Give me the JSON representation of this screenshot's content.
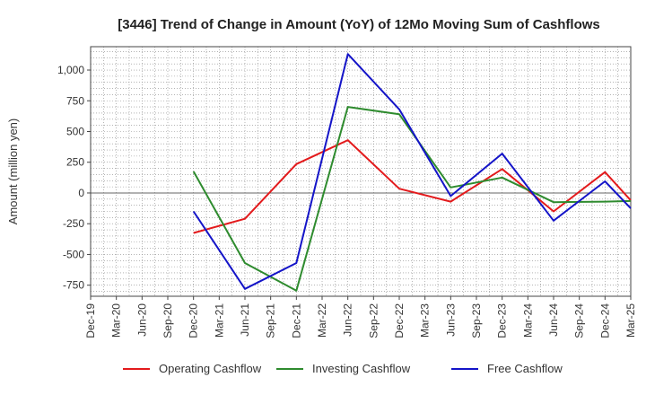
{
  "chart_data": {
    "type": "line",
    "title": "[3446]  Trend of Change in Amount (YoY) of 12Mo Moving Sum of Cashflows",
    "xlabel": "",
    "ylabel": "Amount (million yen)",
    "ylim": [
      -840,
      1190
    ],
    "yticks": [
      -750,
      -500,
      -250,
      0,
      250,
      500,
      750,
      1000
    ],
    "ytick_labels": [
      "-750",
      "-500",
      "-250",
      "0",
      "250",
      "500",
      "750",
      "1,000"
    ],
    "categories": [
      "Dec-19",
      "Mar-20",
      "Jun-20",
      "Sep-20",
      "Dec-20",
      "Mar-21",
      "Jun-21",
      "Sep-21",
      "Dec-21",
      "Mar-22",
      "Jun-22",
      "Sep-22",
      "Dec-22",
      "Mar-23",
      "Jun-23",
      "Sep-23",
      "Dec-23",
      "Mar-24",
      "Jun-24",
      "Sep-24",
      "Dec-24",
      "Mar-25"
    ],
    "grid": true,
    "legend_position": "bottom",
    "series": [
      {
        "name": "Operating Cashflow",
        "color": "#e31a1c",
        "values": [
          null,
          null,
          null,
          null,
          -325,
          null,
          -210,
          null,
          235,
          null,
          430,
          null,
          35,
          null,
          -70,
          null,
          195,
          null,
          -150,
          null,
          170,
          -60
        ]
      },
      {
        "name": "Investing Cashflow",
        "color": "#2e8b2e",
        "values": [
          null,
          null,
          null,
          null,
          175,
          null,
          -570,
          null,
          -795,
          null,
          700,
          null,
          640,
          null,
          45,
          null,
          125,
          null,
          -75,
          null,
          -70,
          -65
        ]
      },
      {
        "name": "Free Cashflow",
        "color": "#1414c8",
        "values": [
          null,
          null,
          null,
          null,
          -150,
          null,
          -780,
          null,
          -570,
          null,
          1130,
          null,
          680,
          null,
          -25,
          null,
          320,
          null,
          -225,
          null,
          95,
          -125
        ]
      }
    ]
  }
}
